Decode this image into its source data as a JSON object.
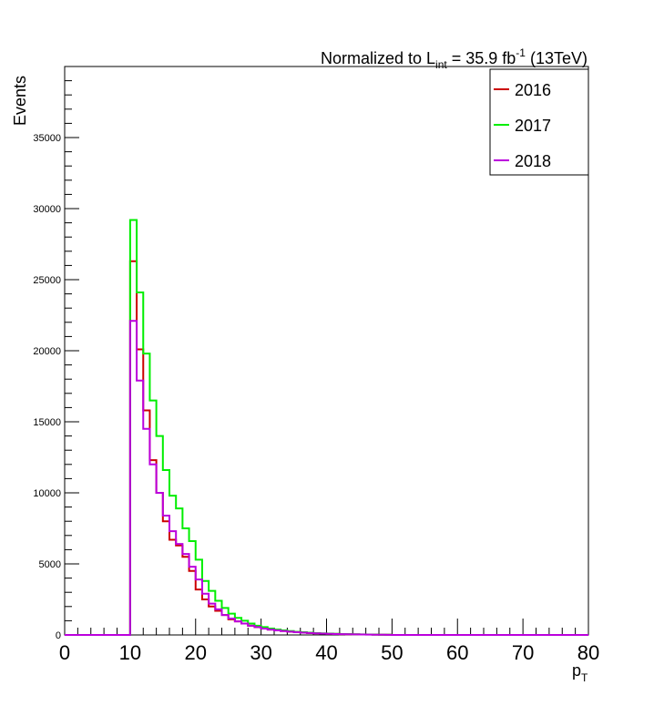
{
  "chart_data": {
    "type": "step-histogram",
    "title_parts": {
      "prefix": "Normalized to L",
      "sub": "int",
      "mid": " = 35.9 fb",
      "sup": "-1",
      "suffix": " (13TeV)"
    },
    "xlabel": "p",
    "xlabel_sub": "T",
    "ylabel": "Events",
    "xlim": [
      0,
      80
    ],
    "ylim": [
      0,
      40000
    ],
    "bin_width": 1,
    "x_ticks": [
      "0",
      "10",
      "20",
      "30",
      "40",
      "50",
      "60",
      "70",
      "80"
    ],
    "y_ticks": [
      "0",
      "5000",
      "10000",
      "15000",
      "20000",
      "25000",
      "30000",
      "35000"
    ],
    "legend_position": "top-right",
    "series": [
      {
        "name": "2016",
        "color": "#cc0000",
        "x_start": 10,
        "values": [
          26300,
          20100,
          15800,
          12300,
          10000,
          8000,
          6700,
          6300,
          5500,
          4500,
          3200,
          2500,
          2000,
          1700,
          1400,
          1100,
          950,
          800,
          650,
          550,
          450,
          380,
          330,
          280,
          230,
          200,
          170,
          140,
          120,
          100,
          85,
          70,
          60,
          50,
          40,
          35,
          30,
          25,
          20,
          15
        ]
      },
      {
        "name": "2017",
        "color": "#00ee00",
        "x_start": 10,
        "values": [
          29200,
          24100,
          19800,
          16500,
          14000,
          11600,
          9800,
          8900,
          7500,
          6600,
          5300,
          3800,
          3100,
          2400,
          1900,
          1500,
          1200,
          1000,
          800,
          650,
          550,
          450,
          380,
          320,
          270,
          220,
          190,
          160,
          130,
          110,
          95,
          80,
          65,
          55,
          45,
          38,
          32,
          26,
          20,
          15
        ]
      },
      {
        "name": "2018",
        "color": "#bb00dd",
        "x_start": 10,
        "values": [
          22100,
          17900,
          14500,
          12000,
          10000,
          8400,
          7300,
          6400,
          5700,
          4800,
          3900,
          2900,
          2200,
          1800,
          1400,
          1150,
          950,
          800,
          650,
          550,
          450,
          380,
          320,
          270,
          230,
          190,
          160,
          135,
          115,
          95,
          80,
          68,
          55,
          45,
          38,
          32,
          26,
          20,
          15,
          10
        ]
      }
    ]
  }
}
